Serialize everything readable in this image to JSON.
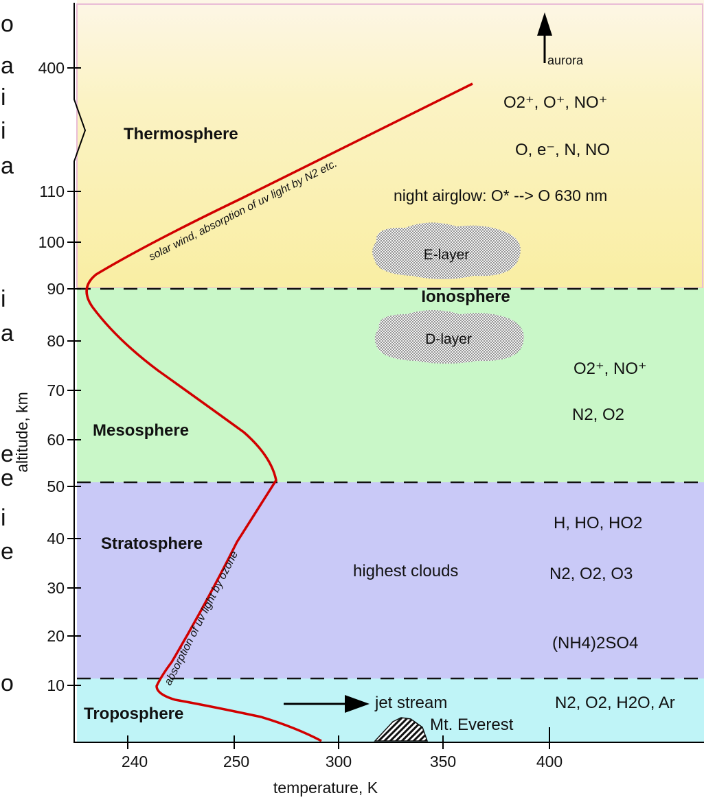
{
  "diagram": {
    "x_axis": {
      "label": "temperature, K",
      "ticks": [
        "240",
        "250",
        "300",
        "350",
        "400"
      ]
    },
    "y_axis": {
      "label": "altitude, km",
      "ticks_lower": [
        "10",
        "20",
        "30",
        "40",
        "50",
        "60",
        "70",
        "80",
        "90",
        "100",
        "110"
      ],
      "tick_upper": "400"
    },
    "layers": [
      {
        "name": "Thermosphere",
        "color": "#fcf3b8"
      },
      {
        "name": "Mesosphere",
        "color": "#c9f7c8"
      },
      {
        "name": "Stratosphere",
        "color": "#c9c9f7"
      },
      {
        "name": "Troposphere",
        "color": "#bff4f7"
      }
    ],
    "boundaries_km": [
      90,
      51,
      12
    ],
    "ionosphere_label": "Ionosphere",
    "e_layer": "E-layer",
    "d_layer": "D-layer",
    "aurora": "aurora",
    "night_airglow": "night airglow:   O* --> O   630 nm",
    "highest_clouds": "highest clouds",
    "jet_stream": "jet stream",
    "mt_everest": "Mt. Everest",
    "curve_note_upper": "solar wind, absorption of uv light by N2 etc.",
    "curve_note_lower": "absorption of uv light by ozone",
    "curve_color": "#d10000",
    "species": {
      "thermo_ions": "O2⁺, O⁺, NO⁺",
      "thermo_neutrals": "O, e⁻, N, NO",
      "meso_ions": "O2⁺,  NO⁺",
      "meso_neutrals": "N2, O2",
      "strat_radicals": "H, HO, HO2",
      "strat_gases": "N2, O2, O3",
      "strat_aerosol": "(NH4)2SO4",
      "tropo_gases": "N2, O2, H2O, Ar"
    },
    "edge_letters": [
      "o",
      "a",
      "i",
      "i",
      "a",
      "i",
      "a",
      "e",
      "e",
      "i",
      "e",
      "o"
    ]
  }
}
